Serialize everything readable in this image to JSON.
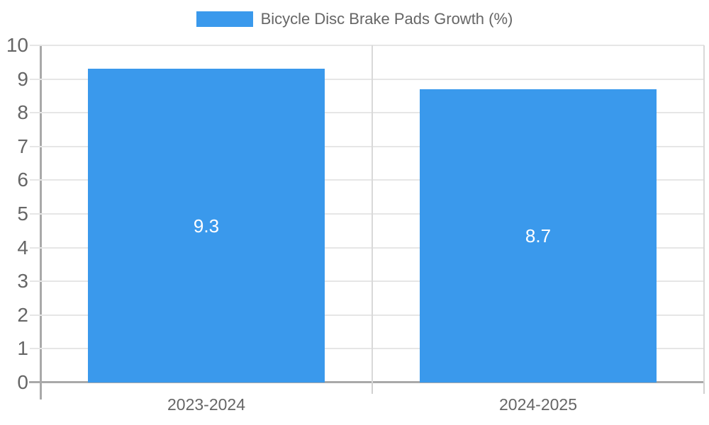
{
  "chart_data": {
    "type": "bar",
    "title": "",
    "legend": {
      "label": "Bicycle Disc Brake Pads Growth (%)",
      "position": "top-center"
    },
    "categories": [
      "2023-2024",
      "2024-2025"
    ],
    "series": [
      {
        "name": "Bicycle Disc Brake Pads Growth (%)",
        "values": [
          9.3,
          8.7
        ],
        "data_labels": [
          "9.3",
          "8.7"
        ]
      }
    ],
    "xlabel": "",
    "ylabel": "",
    "ylim": [
      0,
      10
    ],
    "yticks": [
      0,
      1,
      2,
      3,
      4,
      5,
      6,
      7,
      8,
      9,
      10
    ],
    "grid": "on",
    "data_label_position": "center-of-bar"
  },
  "colors": {
    "bar": "#3a99ec",
    "axis_line": "#a9a9a9",
    "gridline_horizontal": "#e6e6e6",
    "gridline_vertical": "#d9d9d9",
    "category_tick": "#d0d0d0",
    "axis_text": "#666666",
    "data_label_text": "#ffffff",
    "background": "#ffffff"
  }
}
